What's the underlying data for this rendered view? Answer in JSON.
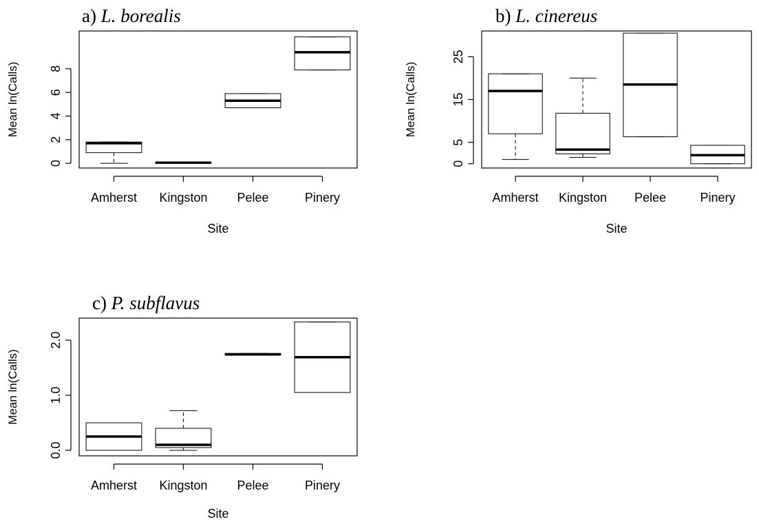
{
  "chart_data": [
    {
      "type": "box",
      "panel_label": "a)",
      "species": "L. borealis",
      "xlabel": "Site",
      "ylabel": "Mean ln(Calls)",
      "categories": [
        "Amherst",
        "Kingston",
        "Pelee",
        "Pinery"
      ],
      "yticks": [
        "0",
        "2",
        "4",
        "6",
        "8"
      ],
      "ylim": [
        -0.4,
        11.2
      ],
      "boxes": [
        {
          "site": "Amherst",
          "whisker_low": 0.0,
          "q1": 0.9,
          "median": 1.7,
          "q3": 1.8,
          "whisker_high": 1.8
        },
        {
          "site": "Kingston",
          "whisker_low": 0.0,
          "q1": 0.0,
          "median": 0.05,
          "q3": 0.1,
          "whisker_high": 0.1
        },
        {
          "site": "Pelee",
          "whisker_low": 4.7,
          "q1": 4.7,
          "median": 5.3,
          "q3": 5.9,
          "whisker_high": 5.9
        },
        {
          "site": "Pinery",
          "whisker_low": 7.9,
          "q1": 7.9,
          "median": 9.4,
          "q3": 10.7,
          "whisker_high": 10.7
        }
      ]
    },
    {
      "type": "box",
      "panel_label": "b)",
      "species": "L. cinereus",
      "xlabel": "Site",
      "ylabel": "Mean ln(Calls)",
      "categories": [
        "Amherst",
        "Kingston",
        "Pelee",
        "Pinery"
      ],
      "yticks": [
        "0",
        "5",
        "15",
        "25"
      ],
      "ylim": [
        -1,
        31
      ],
      "boxes": [
        {
          "site": "Amherst",
          "whisker_low": 1.0,
          "q1": 7.0,
          "median": 17.0,
          "q3": 21.0,
          "whisker_high": 21.0
        },
        {
          "site": "Kingston",
          "whisker_low": 1.5,
          "q1": 2.3,
          "median": 3.3,
          "q3": 11.8,
          "whisker_high": 20.0
        },
        {
          "site": "Pelee",
          "whisker_low": 6.3,
          "q1": 6.3,
          "median": 18.5,
          "q3": 30.5,
          "whisker_high": 30.5
        },
        {
          "site": "Pinery",
          "whisker_low": 0.0,
          "q1": 0.0,
          "median": 2.0,
          "q3": 4.3,
          "whisker_high": 4.3
        }
      ]
    },
    {
      "type": "box",
      "panel_label": "c)",
      "species": "P. subflavus",
      "xlabel": "Site",
      "ylabel": "Mean ln(Calls)",
      "categories": [
        "Amherst",
        "Kingston",
        "Pelee",
        "Pinery"
      ],
      "yticks": [
        "0.0",
        "1.0",
        "2.0"
      ],
      "ylim": [
        -0.1,
        2.4
      ],
      "boxes": [
        {
          "site": "Amherst",
          "whisker_low": 0.0,
          "q1": 0.0,
          "median": 0.25,
          "q3": 0.5,
          "whisker_high": 0.5
        },
        {
          "site": "Kingston",
          "whisker_low": 0.0,
          "q1": 0.05,
          "median": 0.1,
          "q3": 0.4,
          "whisker_high": 0.72
        },
        {
          "site": "Pelee",
          "whisker_low": 1.73,
          "q1": 1.73,
          "median": 1.74,
          "q3": 1.76,
          "whisker_high": 1.76
        },
        {
          "site": "Pinery",
          "whisker_low": 1.05,
          "q1": 1.05,
          "median": 1.69,
          "q3": 2.33,
          "whisker_high": 2.33
        }
      ]
    }
  ]
}
